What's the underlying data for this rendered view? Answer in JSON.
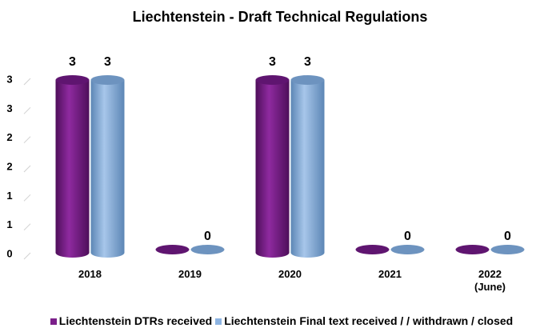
{
  "chart_data": {
    "type": "bar",
    "title": "Liechtenstein - Draft Technical Regulations",
    "categories": [
      "2018",
      "2019",
      "2020",
      "2021",
      "2022\n(June)"
    ],
    "series": [
      {
        "name": "Liechtenstein DTRs received",
        "color": "#7b1f8a",
        "values": [
          3,
          0,
          3,
          0,
          0
        ],
        "value_labels": [
          "3",
          null,
          "3",
          null,
          null
        ]
      },
      {
        "name": "Liechtenstein Final text received / / withdrawn / closed",
        "color": "#8db4e2",
        "values": [
          3,
          0,
          3,
          0,
          0
        ]
      }
    ],
    "ylim": [
      0,
      3
    ],
    "yticks": [
      0,
      {
        "value": 0.5,
        "label": "1"
      },
      1,
      {
        "value": 1.5,
        "label": "2"
      },
      2,
      {
        "value": 2.5,
        "label": "3"
      },
      3
    ],
    "legend": "bottom"
  }
}
